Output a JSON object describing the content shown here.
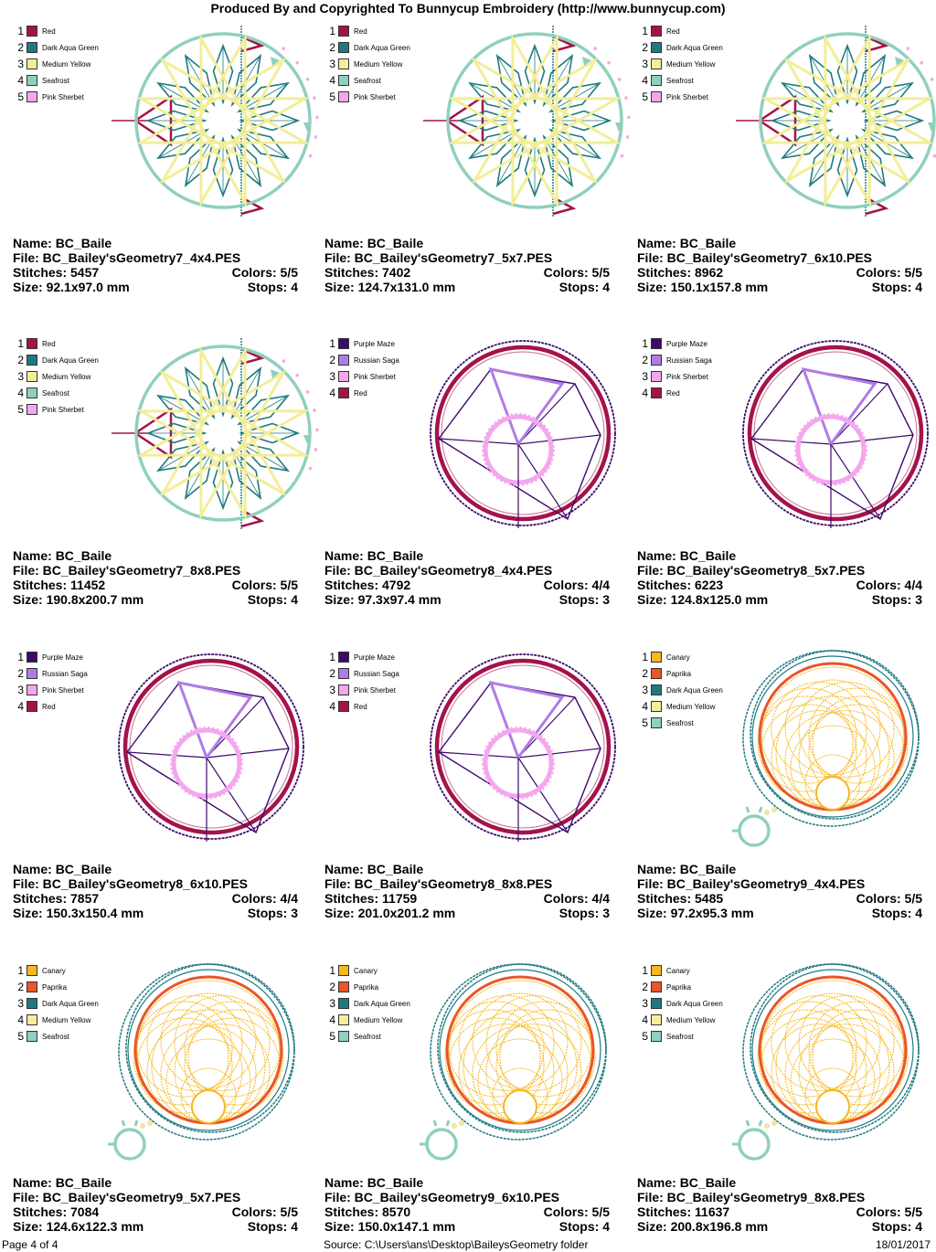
{
  "header": {
    "title": "Produced By and Copyrighted To Bunnycup Embroidery (http://www.bunnycup.com)"
  },
  "labels": {
    "name": "Name:",
    "file": "File:",
    "stitches": "Stitches:",
    "colors": "Colors:",
    "size": "Size:",
    "stops": "Stops:"
  },
  "colors": {
    "Red": "#a3134a",
    "Dark Aqua Green": "#1f7a80",
    "Medium Yellow": "#f3ee97",
    "Seafrost": "#8fd0bd",
    "Pink Sherbet": "#f4a6ee",
    "Purple Maze": "#3d0a6b",
    "Russian Saga": "#b07be6",
    "Canary": "#f6b820",
    "Paprika": "#e8562a"
  },
  "designs": [
    {
      "motif": "star",
      "legend": [
        {
          "num": "1",
          "name": "Red"
        },
        {
          "num": "2",
          "name": "Dark Aqua Green"
        },
        {
          "num": "3",
          "name": "Medium Yellow"
        },
        {
          "num": "4",
          "name": "Seafrost"
        },
        {
          "num": "5",
          "name": "Pink Sherbet"
        }
      ],
      "name": "BC_Baile",
      "file": "BC_Bailey'sGeometry7_4x4.PES",
      "stitches": "5457",
      "colors": "5/5",
      "size": "92.1x97.0 mm",
      "stops": "4"
    },
    {
      "motif": "star",
      "legend": [
        {
          "num": "1",
          "name": "Red"
        },
        {
          "num": "2",
          "name": "Dark Aqua Green"
        },
        {
          "num": "3",
          "name": "Medium Yellow"
        },
        {
          "num": "4",
          "name": "Seafrost"
        },
        {
          "num": "5",
          "name": "Pink Sherbet"
        }
      ],
      "name": "BC_Baile",
      "file": "BC_Bailey'sGeometry7_5x7.PES",
      "stitches": "7402",
      "colors": "5/5",
      "size": "124.7x131.0 mm",
      "stops": "4"
    },
    {
      "motif": "star",
      "legend": [
        {
          "num": "1",
          "name": "Red"
        },
        {
          "num": "2",
          "name": "Dark Aqua Green"
        },
        {
          "num": "3",
          "name": "Medium Yellow"
        },
        {
          "num": "4",
          "name": "Seafrost"
        },
        {
          "num": "5",
          "name": "Pink Sherbet"
        }
      ],
      "name": "BC_Baile",
      "file": "BC_Bailey'sGeometry7_6x10.PES",
      "stitches": "8962",
      "colors": "5/5",
      "size": "150.1x157.8 mm",
      "stops": "4"
    },
    {
      "motif": "star",
      "legend": [
        {
          "num": "1",
          "name": "Red"
        },
        {
          "num": "2",
          "name": "Dark Aqua Green"
        },
        {
          "num": "3",
          "name": "Medium Yellow"
        },
        {
          "num": "4",
          "name": "Seafrost"
        },
        {
          "num": "5",
          "name": "Pink Sherbet"
        }
      ],
      "name": "BC_Baile",
      "file": "BC_Bailey'sGeometry7_8x8.PES",
      "stitches": "11452",
      "colors": "5/5",
      "size": "190.8x200.7 mm",
      "stops": "4"
    },
    {
      "motif": "pent",
      "legend": [
        {
          "num": "1",
          "name": "Purple Maze"
        },
        {
          "num": "2",
          "name": "Russian Saga"
        },
        {
          "num": "3",
          "name": "Pink Sherbet"
        },
        {
          "num": "4",
          "name": "Red"
        }
      ],
      "name": "BC_Baile",
      "file": "BC_Bailey'sGeometry8_4x4.PES",
      "stitches": "4792",
      "colors": "4/4",
      "size": "97.3x97.4 mm",
      "stops": "3"
    },
    {
      "motif": "pent",
      "legend": [
        {
          "num": "1",
          "name": "Purple Maze"
        },
        {
          "num": "2",
          "name": "Russian Saga"
        },
        {
          "num": "3",
          "name": "Pink Sherbet"
        },
        {
          "num": "4",
          "name": "Red"
        }
      ],
      "name": "BC_Baile",
      "file": "BC_Bailey'sGeometry8_5x7.PES",
      "stitches": "6223",
      "colors": "4/4",
      "size": "124.8x125.0 mm",
      "stops": "3"
    },
    {
      "motif": "pent",
      "legend": [
        {
          "num": "1",
          "name": "Purple Maze"
        },
        {
          "num": "2",
          "name": "Russian Saga"
        },
        {
          "num": "3",
          "name": "Pink Sherbet"
        },
        {
          "num": "4",
          "name": "Red"
        }
      ],
      "name": "BC_Baile",
      "file": "BC_Bailey'sGeometry8_6x10.PES",
      "stitches": "7857",
      "colors": "4/4",
      "size": "150.3x150.4 mm",
      "stops": "3"
    },
    {
      "motif": "pent",
      "legend": [
        {
          "num": "1",
          "name": "Purple Maze"
        },
        {
          "num": "2",
          "name": "Russian Saga"
        },
        {
          "num": "3",
          "name": "Pink Sherbet"
        },
        {
          "num": "4",
          "name": "Red"
        }
      ],
      "name": "BC_Baile",
      "file": "BC_Bailey'sGeometry8_8x8.PES",
      "stitches": "11759",
      "colors": "4/4",
      "size": "201.0x201.2 mm",
      "stops": "3"
    },
    {
      "motif": "rings",
      "legend": [
        {
          "num": "1",
          "name": "Canary"
        },
        {
          "num": "2",
          "name": "Paprika"
        },
        {
          "num": "3",
          "name": "Dark Aqua Green"
        },
        {
          "num": "4",
          "name": "Medium Yellow"
        },
        {
          "num": "5",
          "name": "Seafrost"
        }
      ],
      "name": "BC_Baile",
      "file": "BC_Bailey'sGeometry9_4x4.PES",
      "stitches": "5485",
      "colors": "5/5",
      "size": "97.2x95.3 mm",
      "stops": "4"
    },
    {
      "motif": "rings",
      "legend": [
        {
          "num": "1",
          "name": "Canary"
        },
        {
          "num": "2",
          "name": "Paprika"
        },
        {
          "num": "3",
          "name": "Dark Aqua Green"
        },
        {
          "num": "4",
          "name": "Medium Yellow"
        },
        {
          "num": "5",
          "name": "Seafrost"
        }
      ],
      "name": "BC_Baile",
      "file": "BC_Bailey'sGeometry9_5x7.PES",
      "stitches": "7084",
      "colors": "5/5",
      "size": "124.6x122.3 mm",
      "stops": "4"
    },
    {
      "motif": "rings",
      "legend": [
        {
          "num": "1",
          "name": "Canary"
        },
        {
          "num": "2",
          "name": "Paprika"
        },
        {
          "num": "3",
          "name": "Dark Aqua Green"
        },
        {
          "num": "4",
          "name": "Medium Yellow"
        },
        {
          "num": "5",
          "name": "Seafrost"
        }
      ],
      "name": "BC_Baile",
      "file": "BC_Bailey'sGeometry9_6x10.PES",
      "stitches": "8570",
      "colors": "5/5",
      "size": "150.0x147.1 mm",
      "stops": "4"
    },
    {
      "motif": "rings",
      "legend": [
        {
          "num": "1",
          "name": "Canary"
        },
        {
          "num": "2",
          "name": "Paprika"
        },
        {
          "num": "3",
          "name": "Dark Aqua Green"
        },
        {
          "num": "4",
          "name": "Medium Yellow"
        },
        {
          "num": "5",
          "name": "Seafrost"
        }
      ],
      "name": "BC_Baile",
      "file": "BC_Bailey'sGeometry9_8x8.PES",
      "stitches": "11637",
      "colors": "5/5",
      "size": "200.8x196.8 mm",
      "stops": "4"
    }
  ],
  "footer": {
    "page": "Page 4 of 4",
    "source": "Source: C:\\Users\\ans\\Desktop\\BaileysGeometry folder",
    "date": "18/01/2017"
  }
}
